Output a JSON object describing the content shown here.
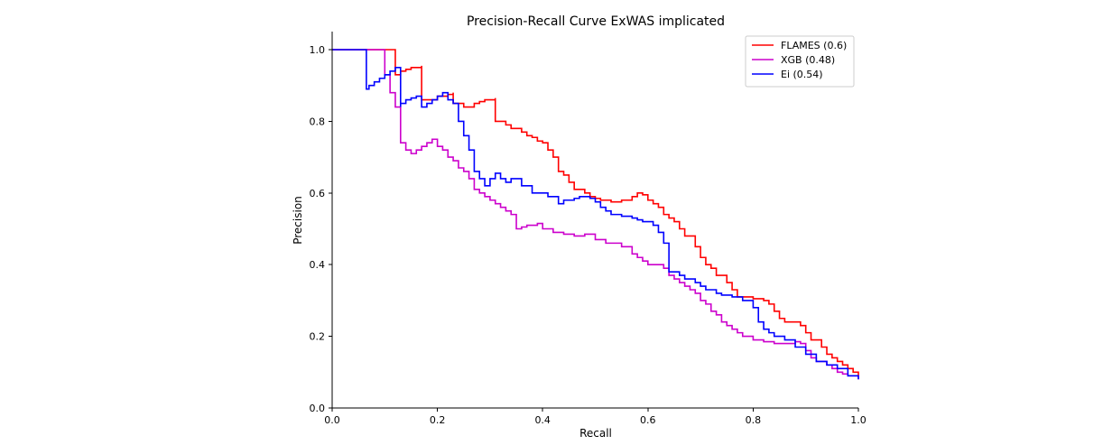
{
  "chart_data": {
    "type": "line",
    "title": "Precision-Recall Curve ExWAS implicated",
    "xlabel": "Recall",
    "ylabel": "Precision",
    "xlim": [
      0,
      1
    ],
    "ylim": [
      0,
      1.05
    ],
    "xticks": [
      "0.0",
      "0.2",
      "0.4",
      "0.6",
      "0.8",
      "1.0"
    ],
    "yticks": [
      "0.0",
      "0.2",
      "0.4",
      "0.6",
      "0.8",
      "1.0"
    ],
    "grid": false,
    "legend_position": "top-right",
    "series": [
      {
        "name": "FLAMES (0.6)",
        "color": "#ff0000",
        "x": [
          0.0,
          0.12,
          0.12,
          0.13,
          0.14,
          0.15,
          0.17,
          0.17,
          0.19,
          0.2,
          0.22,
          0.23,
          0.23,
          0.25,
          0.25,
          0.27,
          0.28,
          0.29,
          0.31,
          0.31,
          0.33,
          0.34,
          0.36,
          0.37,
          0.38,
          0.39,
          0.4,
          0.41,
          0.42,
          0.43,
          0.44,
          0.45,
          0.46,
          0.48,
          0.49,
          0.5,
          0.51,
          0.53,
          0.55,
          0.57,
          0.58,
          0.59,
          0.6,
          0.61,
          0.62,
          0.63,
          0.64,
          0.65,
          0.66,
          0.67,
          0.69,
          0.7,
          0.71,
          0.72,
          0.73,
          0.75,
          0.76,
          0.77,
          0.79,
          0.8,
          0.82,
          0.83,
          0.84,
          0.85,
          0.86,
          0.89,
          0.89,
          0.9,
          0.91,
          0.93,
          0.94,
          0.95,
          0.96,
          0.97,
          0.98,
          0.99,
          1.0
        ],
        "y": [
          1.0,
          1.0,
          0.93,
          0.94,
          0.945,
          0.95,
          0.955,
          0.86,
          0.86,
          0.87,
          0.875,
          0.88,
          0.85,
          0.845,
          0.84,
          0.85,
          0.855,
          0.86,
          0.865,
          0.8,
          0.79,
          0.78,
          0.77,
          0.76,
          0.755,
          0.745,
          0.74,
          0.72,
          0.7,
          0.66,
          0.65,
          0.63,
          0.61,
          0.6,
          0.59,
          0.585,
          0.58,
          0.575,
          0.58,
          0.59,
          0.6,
          0.595,
          0.58,
          0.57,
          0.56,
          0.54,
          0.53,
          0.52,
          0.5,
          0.48,
          0.45,
          0.42,
          0.4,
          0.39,
          0.37,
          0.35,
          0.33,
          0.31,
          0.31,
          0.305,
          0.3,
          0.29,
          0.27,
          0.25,
          0.24,
          0.24,
          0.23,
          0.21,
          0.19,
          0.17,
          0.15,
          0.14,
          0.13,
          0.12,
          0.11,
          0.1,
          0.09
        ]
      },
      {
        "name": "XGB (0.48)",
        "color": "#cc00cc",
        "x": [
          0.0,
          0.1,
          0.1,
          0.11,
          0.12,
          0.13,
          0.13,
          0.14,
          0.15,
          0.16,
          0.17,
          0.18,
          0.19,
          0.2,
          0.21,
          0.22,
          0.23,
          0.24,
          0.25,
          0.26,
          0.27,
          0.28,
          0.29,
          0.3,
          0.31,
          0.32,
          0.33,
          0.34,
          0.35,
          0.36,
          0.37,
          0.39,
          0.4,
          0.42,
          0.44,
          0.46,
          0.48,
          0.5,
          0.52,
          0.55,
          0.57,
          0.58,
          0.59,
          0.6,
          0.61,
          0.62,
          0.63,
          0.64,
          0.65,
          0.66,
          0.67,
          0.68,
          0.69,
          0.7,
          0.71,
          0.72,
          0.73,
          0.74,
          0.75,
          0.76,
          0.77,
          0.78,
          0.8,
          0.82,
          0.84,
          0.86,
          0.88,
          0.89,
          0.9,
          0.91,
          0.92,
          0.94,
          0.95,
          0.96,
          0.97,
          0.98,
          1.0
        ],
        "y": [
          1.0,
          1.0,
          0.93,
          0.88,
          0.84,
          0.77,
          0.74,
          0.72,
          0.71,
          0.72,
          0.73,
          0.74,
          0.75,
          0.73,
          0.72,
          0.7,
          0.69,
          0.67,
          0.66,
          0.64,
          0.61,
          0.6,
          0.59,
          0.58,
          0.57,
          0.56,
          0.55,
          0.54,
          0.5,
          0.505,
          0.51,
          0.515,
          0.5,
          0.49,
          0.485,
          0.48,
          0.485,
          0.47,
          0.46,
          0.45,
          0.43,
          0.42,
          0.41,
          0.4,
          0.4,
          0.4,
          0.39,
          0.37,
          0.36,
          0.35,
          0.34,
          0.33,
          0.32,
          0.3,
          0.29,
          0.27,
          0.26,
          0.24,
          0.23,
          0.22,
          0.21,
          0.2,
          0.19,
          0.185,
          0.18,
          0.18,
          0.185,
          0.18,
          0.16,
          0.14,
          0.13,
          0.12,
          0.11,
          0.1,
          0.095,
          0.09,
          0.08
        ]
      },
      {
        "name": "Ei (0.54)",
        "color": "#0000ff",
        "x": [
          0.0,
          0.065,
          0.065,
          0.07,
          0.08,
          0.09,
          0.1,
          0.11,
          0.12,
          0.13,
          0.13,
          0.14,
          0.15,
          0.16,
          0.17,
          0.17,
          0.18,
          0.19,
          0.2,
          0.21,
          0.22,
          0.23,
          0.24,
          0.25,
          0.26,
          0.27,
          0.28,
          0.29,
          0.3,
          0.31,
          0.32,
          0.33,
          0.34,
          0.36,
          0.38,
          0.39,
          0.41,
          0.43,
          0.44,
          0.46,
          0.47,
          0.49,
          0.5,
          0.51,
          0.52,
          0.53,
          0.55,
          0.57,
          0.58,
          0.59,
          0.61,
          0.62,
          0.63,
          0.64,
          0.64,
          0.66,
          0.67,
          0.69,
          0.7,
          0.71,
          0.73,
          0.74,
          0.76,
          0.78,
          0.8,
          0.81,
          0.82,
          0.83,
          0.84,
          0.86,
          0.88,
          0.9,
          0.92,
          0.94,
          0.96,
          0.98,
          1.0
        ],
        "y": [
          1.0,
          1.0,
          0.89,
          0.9,
          0.91,
          0.92,
          0.93,
          0.94,
          0.95,
          0.84,
          0.85,
          0.86,
          0.865,
          0.87,
          0.86,
          0.84,
          0.85,
          0.86,
          0.87,
          0.88,
          0.86,
          0.85,
          0.8,
          0.76,
          0.72,
          0.66,
          0.64,
          0.62,
          0.64,
          0.655,
          0.64,
          0.63,
          0.64,
          0.62,
          0.6,
          0.6,
          0.59,
          0.57,
          0.58,
          0.585,
          0.59,
          0.585,
          0.575,
          0.56,
          0.55,
          0.54,
          0.535,
          0.53,
          0.525,
          0.52,
          0.51,
          0.49,
          0.46,
          0.39,
          0.38,
          0.37,
          0.36,
          0.35,
          0.34,
          0.33,
          0.32,
          0.315,
          0.31,
          0.3,
          0.28,
          0.24,
          0.22,
          0.21,
          0.2,
          0.19,
          0.17,
          0.15,
          0.13,
          0.12,
          0.11,
          0.09,
          0.08
        ]
      }
    ]
  }
}
